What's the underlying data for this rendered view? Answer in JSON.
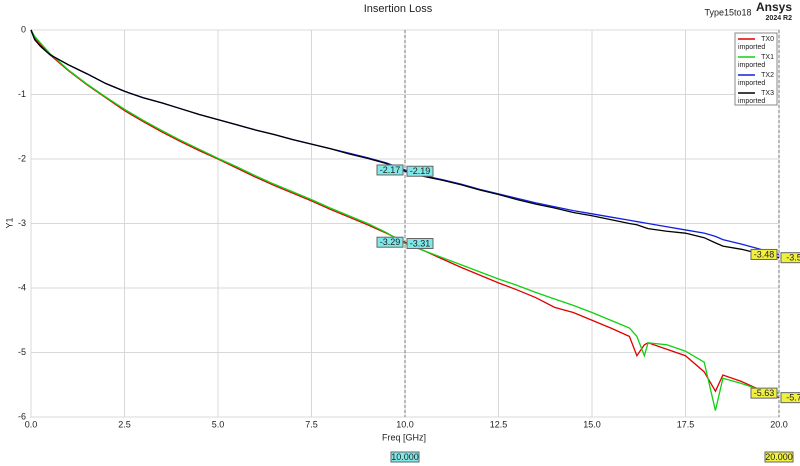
{
  "chart_data": {
    "type": "line",
    "title": "Insertion Loss",
    "subtitle": "Type15to18",
    "brand": "Ansys",
    "version": "2024 R2",
    "xlabel": "Freq [GHz]",
    "ylabel": "Y1",
    "xlim": [
      0,
      20
    ],
    "ylim": [
      -6,
      0
    ],
    "xticks": [
      {
        "value": 0,
        "label": "0.0"
      },
      {
        "value": 2.5,
        "label": "2.5"
      },
      {
        "value": 5,
        "label": "5.0"
      },
      {
        "value": 7.5,
        "label": "7.5"
      },
      {
        "value": 10,
        "label": "10.0"
      },
      {
        "value": 12.5,
        "label": "12.5"
      },
      {
        "value": 15,
        "label": "15.0"
      },
      {
        "value": 17.5,
        "label": "17.5"
      },
      {
        "value": 20,
        "label": "20.0"
      }
    ],
    "yticks": [
      0,
      -1,
      -2,
      -3,
      -4,
      -5,
      -6
    ],
    "grid": true,
    "legend": "top-right",
    "x": [
      0,
      0.1,
      0.25,
      0.5,
      1,
      1.5,
      2,
      2.5,
      3,
      3.5,
      4,
      4.5,
      5,
      5.5,
      6,
      6.5,
      7,
      7.5,
      8,
      8.5,
      9,
      9.5,
      10,
      10.5,
      11,
      11.5,
      12,
      12.5,
      13,
      13.5,
      14,
      14.5,
      15,
      15.5,
      16,
      16.2,
      16.4,
      16.5,
      17,
      17.5,
      18,
      18.3,
      18.5,
      19,
      19.5,
      20
    ],
    "series": [
      {
        "name": "TX0",
        "source": "imported",
        "color": "#e00000",
        "values": [
          0,
          -0.12,
          -0.22,
          -0.38,
          -0.63,
          -0.85,
          -1.05,
          -1.25,
          -1.42,
          -1.58,
          -1.73,
          -1.87,
          -2.0,
          -2.14,
          -2.28,
          -2.41,
          -2.53,
          -2.65,
          -2.78,
          -2.9,
          -3.02,
          -3.15,
          -3.29,
          -3.42,
          -3.55,
          -3.68,
          -3.8,
          -3.92,
          -4.03,
          -4.15,
          -4.3,
          -4.38,
          -4.5,
          -4.62,
          -4.75,
          -5.05,
          -4.88,
          -4.85,
          -4.95,
          -5.05,
          -5.3,
          -5.6,
          -5.35,
          -5.45,
          -5.58,
          -5.7
        ]
      },
      {
        "name": "TX1",
        "source": "imported",
        "color": "#10d010",
        "values": [
          0,
          -0.1,
          -0.2,
          -0.36,
          -0.62,
          -0.84,
          -1.04,
          -1.23,
          -1.4,
          -1.56,
          -1.71,
          -1.85,
          -1.99,
          -2.12,
          -2.26,
          -2.39,
          -2.51,
          -2.63,
          -2.76,
          -2.88,
          -3.0,
          -3.14,
          -3.31,
          -3.42,
          -3.53,
          -3.64,
          -3.75,
          -3.86,
          -3.96,
          -4.07,
          -4.17,
          -4.27,
          -4.38,
          -4.5,
          -4.62,
          -4.75,
          -5.05,
          -4.85,
          -4.88,
          -4.98,
          -5.15,
          -5.9,
          -5.4,
          -5.48,
          -5.58,
          -5.63
        ]
      },
      {
        "name": "TX2",
        "source": "imported",
        "color": "#1020e0",
        "values": [
          0,
          -0.15,
          -0.25,
          -0.38,
          -0.54,
          -0.68,
          -0.83,
          -0.95,
          -1.05,
          -1.13,
          -1.22,
          -1.31,
          -1.39,
          -1.47,
          -1.55,
          -1.62,
          -1.7,
          -1.77,
          -1.84,
          -1.91,
          -1.98,
          -2.06,
          -2.17,
          -2.26,
          -2.32,
          -2.39,
          -2.47,
          -2.54,
          -2.61,
          -2.68,
          -2.74,
          -2.8,
          -2.85,
          -2.9,
          -2.95,
          -2.97,
          -2.99,
          -3.0,
          -3.05,
          -3.1,
          -3.15,
          -3.2,
          -3.25,
          -3.32,
          -3.4,
          -3.48
        ]
      },
      {
        "name": "TX3",
        "source": "imported",
        "color": "#000000",
        "values": [
          0,
          -0.15,
          -0.25,
          -0.38,
          -0.54,
          -0.68,
          -0.83,
          -0.95,
          -1.05,
          -1.13,
          -1.22,
          -1.31,
          -1.39,
          -1.47,
          -1.55,
          -1.62,
          -1.7,
          -1.77,
          -1.84,
          -1.92,
          -1.99,
          -2.07,
          -2.19,
          -2.27,
          -2.33,
          -2.4,
          -2.48,
          -2.55,
          -2.63,
          -2.7,
          -2.76,
          -2.83,
          -2.88,
          -2.94,
          -3.0,
          -3.02,
          -3.06,
          -3.08,
          -3.12,
          -3.15,
          -3.22,
          -3.3,
          -3.35,
          -3.4,
          -3.47,
          -3.53
        ]
      }
    ],
    "markers": [
      {
        "x": 10,
        "y": -2.17,
        "label": "-2.17",
        "color": "#80e8e8"
      },
      {
        "x": 10,
        "y": -2.19,
        "label": "-2.19",
        "color": "#80e8e8"
      },
      {
        "x": 10,
        "y": -3.29,
        "label": "-3.29",
        "color": "#80e8e8"
      },
      {
        "x": 10,
        "y": -3.31,
        "label": "-3.31",
        "color": "#80e8e8"
      },
      {
        "x": 20,
        "y": -3.48,
        "label": "-3.48",
        "color": "#f0f040"
      },
      {
        "x": 20,
        "y": -3.53,
        "label": "-3.5",
        "color": "#f0f040"
      },
      {
        "x": 20,
        "y": -5.63,
        "label": "-5.63",
        "color": "#f0f040"
      },
      {
        "x": 20,
        "y": -5.7,
        "label": "-5.7",
        "color": "#f0f040"
      }
    ],
    "xmarkers": [
      {
        "value": 10,
        "label": "10.000",
        "color": "#80e8e8"
      },
      {
        "value": 20,
        "label": "20.000",
        "color": "#f0f040"
      }
    ]
  }
}
